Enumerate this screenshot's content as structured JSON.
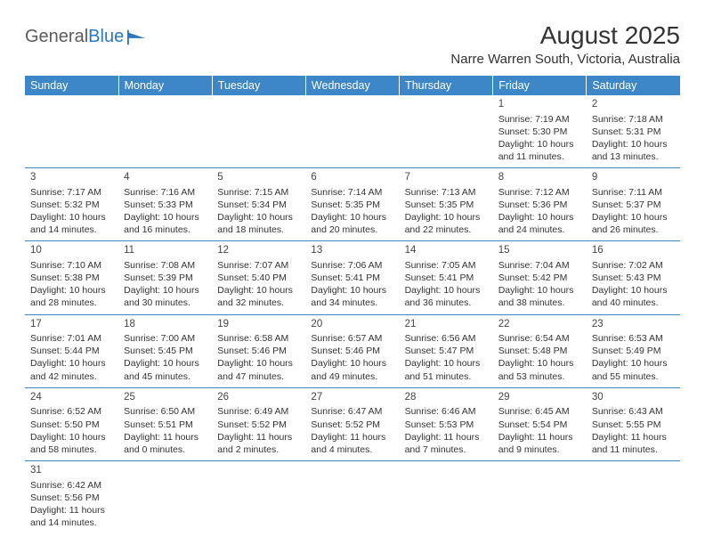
{
  "branding": {
    "logo_text_1": "General",
    "logo_text_2": "Blue",
    "logo_color_gray": "#5b5b5b",
    "logo_color_blue": "#2b77c0"
  },
  "header": {
    "month_title": "August 2025",
    "location": "Narre Warren South, Victoria, Australia"
  },
  "style": {
    "header_bg": "#3d87c9",
    "header_fg": "#ffffff",
    "row_border": "#3d87c9",
    "body_bg": "#ffffff",
    "text_color": "#333333"
  },
  "weekdays": [
    "Sunday",
    "Monday",
    "Tuesday",
    "Wednesday",
    "Thursday",
    "Friday",
    "Saturday"
  ],
  "weeks": [
    [
      null,
      null,
      null,
      null,
      null,
      {
        "n": "1",
        "sr": "Sunrise: 7:19 AM",
        "ss": "Sunset: 5:30 PM",
        "dl": "Daylight: 10 hours and 11 minutes."
      },
      {
        "n": "2",
        "sr": "Sunrise: 7:18 AM",
        "ss": "Sunset: 5:31 PM",
        "dl": "Daylight: 10 hours and 13 minutes."
      }
    ],
    [
      {
        "n": "3",
        "sr": "Sunrise: 7:17 AM",
        "ss": "Sunset: 5:32 PM",
        "dl": "Daylight: 10 hours and 14 minutes."
      },
      {
        "n": "4",
        "sr": "Sunrise: 7:16 AM",
        "ss": "Sunset: 5:33 PM",
        "dl": "Daylight: 10 hours and 16 minutes."
      },
      {
        "n": "5",
        "sr": "Sunrise: 7:15 AM",
        "ss": "Sunset: 5:34 PM",
        "dl": "Daylight: 10 hours and 18 minutes."
      },
      {
        "n": "6",
        "sr": "Sunrise: 7:14 AM",
        "ss": "Sunset: 5:35 PM",
        "dl": "Daylight: 10 hours and 20 minutes."
      },
      {
        "n": "7",
        "sr": "Sunrise: 7:13 AM",
        "ss": "Sunset: 5:35 PM",
        "dl": "Daylight: 10 hours and 22 minutes."
      },
      {
        "n": "8",
        "sr": "Sunrise: 7:12 AM",
        "ss": "Sunset: 5:36 PM",
        "dl": "Daylight: 10 hours and 24 minutes."
      },
      {
        "n": "9",
        "sr": "Sunrise: 7:11 AM",
        "ss": "Sunset: 5:37 PM",
        "dl": "Daylight: 10 hours and 26 minutes."
      }
    ],
    [
      {
        "n": "10",
        "sr": "Sunrise: 7:10 AM",
        "ss": "Sunset: 5:38 PM",
        "dl": "Daylight: 10 hours and 28 minutes."
      },
      {
        "n": "11",
        "sr": "Sunrise: 7:08 AM",
        "ss": "Sunset: 5:39 PM",
        "dl": "Daylight: 10 hours and 30 minutes."
      },
      {
        "n": "12",
        "sr": "Sunrise: 7:07 AM",
        "ss": "Sunset: 5:40 PM",
        "dl": "Daylight: 10 hours and 32 minutes."
      },
      {
        "n": "13",
        "sr": "Sunrise: 7:06 AM",
        "ss": "Sunset: 5:41 PM",
        "dl": "Daylight: 10 hours and 34 minutes."
      },
      {
        "n": "14",
        "sr": "Sunrise: 7:05 AM",
        "ss": "Sunset: 5:41 PM",
        "dl": "Daylight: 10 hours and 36 minutes."
      },
      {
        "n": "15",
        "sr": "Sunrise: 7:04 AM",
        "ss": "Sunset: 5:42 PM",
        "dl": "Daylight: 10 hours and 38 minutes."
      },
      {
        "n": "16",
        "sr": "Sunrise: 7:02 AM",
        "ss": "Sunset: 5:43 PM",
        "dl": "Daylight: 10 hours and 40 minutes."
      }
    ],
    [
      {
        "n": "17",
        "sr": "Sunrise: 7:01 AM",
        "ss": "Sunset: 5:44 PM",
        "dl": "Daylight: 10 hours and 42 minutes."
      },
      {
        "n": "18",
        "sr": "Sunrise: 7:00 AM",
        "ss": "Sunset: 5:45 PM",
        "dl": "Daylight: 10 hours and 45 minutes."
      },
      {
        "n": "19",
        "sr": "Sunrise: 6:58 AM",
        "ss": "Sunset: 5:46 PM",
        "dl": "Daylight: 10 hours and 47 minutes."
      },
      {
        "n": "20",
        "sr": "Sunrise: 6:57 AM",
        "ss": "Sunset: 5:46 PM",
        "dl": "Daylight: 10 hours and 49 minutes."
      },
      {
        "n": "21",
        "sr": "Sunrise: 6:56 AM",
        "ss": "Sunset: 5:47 PM",
        "dl": "Daylight: 10 hours and 51 minutes."
      },
      {
        "n": "22",
        "sr": "Sunrise: 6:54 AM",
        "ss": "Sunset: 5:48 PM",
        "dl": "Daylight: 10 hours and 53 minutes."
      },
      {
        "n": "23",
        "sr": "Sunrise: 6:53 AM",
        "ss": "Sunset: 5:49 PM",
        "dl": "Daylight: 10 hours and 55 minutes."
      }
    ],
    [
      {
        "n": "24",
        "sr": "Sunrise: 6:52 AM",
        "ss": "Sunset: 5:50 PM",
        "dl": "Daylight: 10 hours and 58 minutes."
      },
      {
        "n": "25",
        "sr": "Sunrise: 6:50 AM",
        "ss": "Sunset: 5:51 PM",
        "dl": "Daylight: 11 hours and 0 minutes."
      },
      {
        "n": "26",
        "sr": "Sunrise: 6:49 AM",
        "ss": "Sunset: 5:52 PM",
        "dl": "Daylight: 11 hours and 2 minutes."
      },
      {
        "n": "27",
        "sr": "Sunrise: 6:47 AM",
        "ss": "Sunset: 5:52 PM",
        "dl": "Daylight: 11 hours and 4 minutes."
      },
      {
        "n": "28",
        "sr": "Sunrise: 6:46 AM",
        "ss": "Sunset: 5:53 PM",
        "dl": "Daylight: 11 hours and 7 minutes."
      },
      {
        "n": "29",
        "sr": "Sunrise: 6:45 AM",
        "ss": "Sunset: 5:54 PM",
        "dl": "Daylight: 11 hours and 9 minutes."
      },
      {
        "n": "30",
        "sr": "Sunrise: 6:43 AM",
        "ss": "Sunset: 5:55 PM",
        "dl": "Daylight: 11 hours and 11 minutes."
      }
    ],
    [
      {
        "n": "31",
        "sr": "Sunrise: 6:42 AM",
        "ss": "Sunset: 5:56 PM",
        "dl": "Daylight: 11 hours and 14 minutes."
      },
      null,
      null,
      null,
      null,
      null,
      null
    ]
  ]
}
